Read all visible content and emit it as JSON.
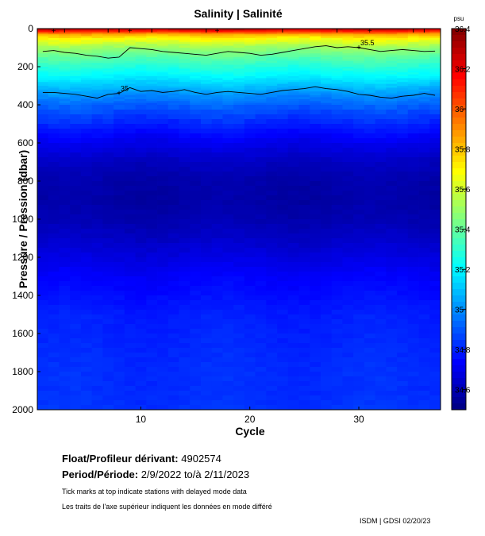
{
  "chart_data": {
    "type": "heatmap",
    "title": "Salinity | Salinité",
    "xlabel": "Cycle",
    "ylabel": "Pressure / Pression (dbar)",
    "xlim": [
      0.5,
      37.5
    ],
    "ylim": [
      0,
      2000
    ],
    "y_reversed": true,
    "xticks": [
      10,
      20,
      30
    ],
    "yticks": [
      0,
      200,
      400,
      600,
      800,
      1000,
      1200,
      1400,
      1600,
      1800,
      2000
    ],
    "colorbar": {
      "unit": "psu",
      "range": [
        34.5,
        36.4
      ],
      "ticks": [
        "36.4",
        "36.2",
        "36",
        "35.8",
        "35.6",
        "35.4",
        "35.2",
        "35",
        "34.8",
        "34.6"
      ]
    },
    "profiles": {
      "pressure": [
        0,
        10,
        20,
        30,
        50,
        75,
        100,
        150,
        200,
        250,
        300,
        350,
        400,
        500,
        600,
        700,
        800,
        900,
        1000,
        1100,
        1200,
        1300,
        1400,
        1500,
        1600,
        1700,
        1800,
        1900,
        2000
      ],
      "salinity": [
        36.3,
        36.2,
        36.0,
        35.85,
        35.7,
        35.6,
        35.5,
        35.38,
        35.28,
        35.2,
        35.1,
        35.0,
        34.92,
        34.8,
        34.7,
        34.62,
        34.58,
        34.57,
        34.59,
        34.63,
        34.68,
        34.73,
        34.76,
        34.79,
        34.8,
        34.81,
        34.82,
        34.82,
        34.83
      ]
    },
    "contours": [
      {
        "label": "35.5",
        "cycles": [
          1,
          2,
          3,
          4,
          5,
          6,
          7,
          8,
          9,
          10,
          11,
          12,
          13,
          14,
          15,
          16,
          17,
          18,
          19,
          20,
          21,
          22,
          23,
          24,
          25,
          26,
          27,
          28,
          29,
          30,
          31,
          32,
          33,
          34,
          35,
          36,
          37
        ],
        "pressure": [
          120,
          115,
          125,
          130,
          140,
          145,
          155,
          150,
          100,
          105,
          110,
          120,
          125,
          130,
          135,
          140,
          130,
          120,
          125,
          130,
          140,
          135,
          125,
          115,
          105,
          95,
          90,
          100,
          95,
          100,
          110,
          120,
          115,
          110,
          115,
          120,
          118
        ]
      },
      {
        "label": "35",
        "cycles": [
          1,
          2,
          3,
          4,
          5,
          6,
          7,
          8,
          9,
          10,
          11,
          12,
          13,
          14,
          15,
          16,
          17,
          18,
          19,
          20,
          21,
          22,
          23,
          24,
          25,
          26,
          27,
          28,
          29,
          30,
          31,
          32,
          33,
          34,
          35,
          36,
          37
        ],
        "pressure": [
          335,
          335,
          340,
          345,
          355,
          365,
          345,
          340,
          310,
          330,
          325,
          335,
          330,
          320,
          335,
          345,
          335,
          330,
          335,
          340,
          345,
          335,
          325,
          320,
          315,
          305,
          315,
          320,
          330,
          345,
          350,
          360,
          365,
          355,
          350,
          340,
          350
        ]
      }
    ],
    "delayed_mode_cycles": [
      3,
      7,
      8,
      11,
      16,
      23,
      28,
      35,
      36
    ],
    "top_contour_markers": [
      2,
      9,
      17,
      31
    ]
  },
  "info": {
    "float_label": "Float/Profileur dérivant:",
    "float_id": "4902574",
    "period_label": "Period/Période:",
    "period_start": "2/9/2022",
    "period_sep": "to/à",
    "period_end": "2/11/2023",
    "note_en": "Tick marks at top indicate stations with delayed mode data",
    "note_fr": "Les traits de l'axe supérieur indiquent les données en mode différé"
  },
  "footer": "ISDM | GDSI  02/20/23"
}
